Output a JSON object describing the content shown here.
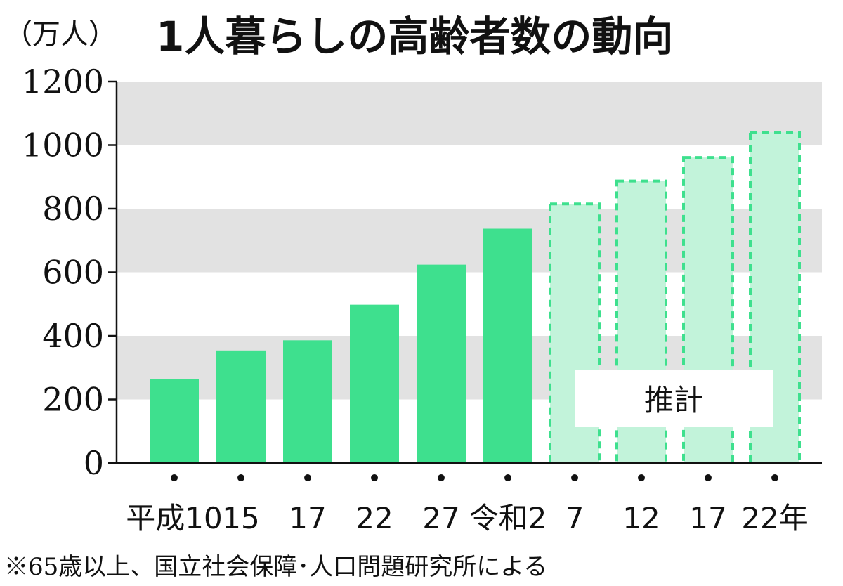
{
  "chart_data": {
    "type": "bar",
    "title": "1人暮らしの高齢者数の動向",
    "unit_label": "（万人）",
    "ylim": [
      0,
      1200
    ],
    "yticks": [
      "0",
      "200",
      "400",
      "600",
      "800",
      "1000",
      "1200"
    ],
    "categories": [
      "平成10",
      "15",
      "17",
      "22",
      "27",
      "令和2",
      "7",
      "12",
      "17",
      "22年"
    ],
    "values": [
      264,
      354,
      386,
      498,
      624,
      737,
      815,
      887,
      961,
      1041
    ],
    "projected": [
      false,
      false,
      false,
      false,
      false,
      false,
      true,
      true,
      true,
      true
    ],
    "projection_label": "推計",
    "footnote": "※65歳以上、国立社会保障･人口問題研究所による",
    "grid": "horizontal bands",
    "colors": {
      "actual": "#3ee08e",
      "projected_fill": "#c2f3da",
      "projected_border": "#3ee08e",
      "band": "#e2e2e2"
    }
  }
}
